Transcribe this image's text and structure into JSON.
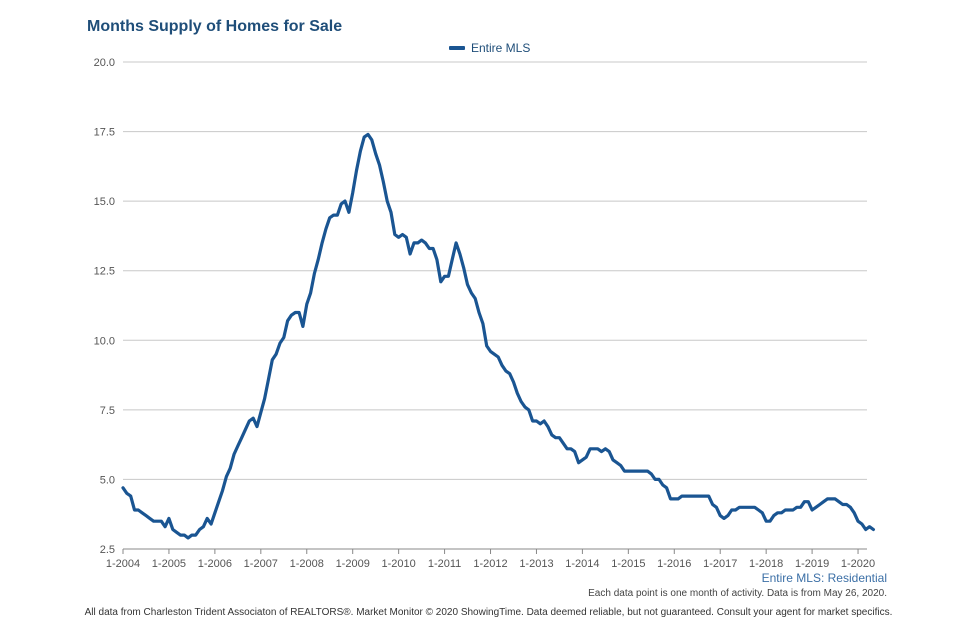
{
  "chart_data": {
    "type": "line",
    "title": "Months Supply of Homes for Sale",
    "xlabel": "",
    "ylabel": "",
    "ylim": [
      2.5,
      20.0
    ],
    "yticks": [
      "20.0",
      "17.5",
      "15.0",
      "12.5",
      "10.0",
      "7.5",
      "5.0",
      "2.5"
    ],
    "xticks": [
      "1-2004",
      "1-2005",
      "1-2006",
      "1-2007",
      "1-2008",
      "1-2009",
      "1-2010",
      "1-2011",
      "1-2012",
      "1-2013",
      "1-2014",
      "1-2015",
      "1-2016",
      "1-2017",
      "1-2018",
      "1-2019",
      "1-2020"
    ],
    "grid": true,
    "legend_position": "top-center",
    "series": [
      {
        "name": "Entire MLS",
        "color": "#1a5592",
        "points": [
          [
            "2004-01",
            4.7
          ],
          [
            "2004-02",
            4.5
          ],
          [
            "2004-03",
            4.4
          ],
          [
            "2004-04",
            3.9
          ],
          [
            "2004-05",
            3.9
          ],
          [
            "2004-06",
            3.8
          ],
          [
            "2004-07",
            3.7
          ],
          [
            "2004-08",
            3.6
          ],
          [
            "2004-09",
            3.5
          ],
          [
            "2004-10",
            3.5
          ],
          [
            "2004-11",
            3.5
          ],
          [
            "2004-12",
            3.3
          ],
          [
            "2005-01",
            3.6
          ],
          [
            "2005-02",
            3.2
          ],
          [
            "2005-03",
            3.1
          ],
          [
            "2005-04",
            3.0
          ],
          [
            "2005-05",
            3.0
          ],
          [
            "2005-06",
            2.9
          ],
          [
            "2005-07",
            3.0
          ],
          [
            "2005-08",
            3.0
          ],
          [
            "2005-09",
            3.2
          ],
          [
            "2005-10",
            3.3
          ],
          [
            "2005-11",
            3.6
          ],
          [
            "2005-12",
            3.4
          ],
          [
            "2006-01",
            3.8
          ],
          [
            "2006-02",
            4.2
          ],
          [
            "2006-03",
            4.6
          ],
          [
            "2006-04",
            5.1
          ],
          [
            "2006-05",
            5.4
          ],
          [
            "2006-06",
            5.9
          ],
          [
            "2006-07",
            6.2
          ],
          [
            "2006-08",
            6.5
          ],
          [
            "2006-09",
            6.8
          ],
          [
            "2006-10",
            7.1
          ],
          [
            "2006-11",
            7.2
          ],
          [
            "2006-12",
            6.9
          ],
          [
            "2007-01",
            7.4
          ],
          [
            "2007-02",
            7.9
          ],
          [
            "2007-03",
            8.6
          ],
          [
            "2007-04",
            9.3
          ],
          [
            "2007-05",
            9.5
          ],
          [
            "2007-06",
            9.9
          ],
          [
            "2007-07",
            10.1
          ],
          [
            "2007-08",
            10.7
          ],
          [
            "2007-09",
            10.9
          ],
          [
            "2007-10",
            11.0
          ],
          [
            "2007-11",
            11.0
          ],
          [
            "2007-12",
            10.5
          ],
          [
            "2008-01",
            11.3
          ],
          [
            "2008-02",
            11.7
          ],
          [
            "2008-03",
            12.4
          ],
          [
            "2008-04",
            12.9
          ],
          [
            "2008-05",
            13.5
          ],
          [
            "2008-06",
            14.0
          ],
          [
            "2008-07",
            14.4
          ],
          [
            "2008-08",
            14.5
          ],
          [
            "2008-09",
            14.5
          ],
          [
            "2008-10",
            14.9
          ],
          [
            "2008-11",
            15.0
          ],
          [
            "2008-12",
            14.6
          ],
          [
            "2009-01",
            15.3
          ],
          [
            "2009-02",
            16.1
          ],
          [
            "2009-03",
            16.8
          ],
          [
            "2009-04",
            17.3
          ],
          [
            "2009-05",
            17.4
          ],
          [
            "2009-06",
            17.2
          ],
          [
            "2009-07",
            16.7
          ],
          [
            "2009-08",
            16.3
          ],
          [
            "2009-09",
            15.7
          ],
          [
            "2009-10",
            15.0
          ],
          [
            "2009-11",
            14.6
          ],
          [
            "2009-12",
            13.8
          ],
          [
            "2010-01",
            13.7
          ],
          [
            "2010-02",
            13.8
          ],
          [
            "2010-03",
            13.7
          ],
          [
            "2010-04",
            13.1
          ],
          [
            "2010-05",
            13.5
          ],
          [
            "2010-06",
            13.5
          ],
          [
            "2010-07",
            13.6
          ],
          [
            "2010-08",
            13.5
          ],
          [
            "2010-09",
            13.3
          ],
          [
            "2010-10",
            13.3
          ],
          [
            "2010-11",
            12.9
          ],
          [
            "2010-12",
            12.1
          ],
          [
            "2011-01",
            12.3
          ],
          [
            "2011-02",
            12.3
          ],
          [
            "2011-03",
            12.9
          ],
          [
            "2011-04",
            13.5
          ],
          [
            "2011-05",
            13.1
          ],
          [
            "2011-06",
            12.6
          ],
          [
            "2011-07",
            12.0
          ],
          [
            "2011-08",
            11.7
          ],
          [
            "2011-09",
            11.5
          ],
          [
            "2011-10",
            11.0
          ],
          [
            "2011-11",
            10.6
          ],
          [
            "2011-12",
            9.8
          ],
          [
            "2012-01",
            9.6
          ],
          [
            "2012-02",
            9.5
          ],
          [
            "2012-03",
            9.4
          ],
          [
            "2012-04",
            9.1
          ],
          [
            "2012-05",
            8.9
          ],
          [
            "2012-06",
            8.8
          ],
          [
            "2012-07",
            8.5
          ],
          [
            "2012-08",
            8.1
          ],
          [
            "2012-09",
            7.8
          ],
          [
            "2012-10",
            7.6
          ],
          [
            "2012-11",
            7.5
          ],
          [
            "2012-12",
            7.1
          ],
          [
            "2013-01",
            7.1
          ],
          [
            "2013-02",
            7.0
          ],
          [
            "2013-03",
            7.1
          ],
          [
            "2013-04",
            6.9
          ],
          [
            "2013-05",
            6.6
          ],
          [
            "2013-06",
            6.5
          ],
          [
            "2013-07",
            6.5
          ],
          [
            "2013-08",
            6.3
          ],
          [
            "2013-09",
            6.1
          ],
          [
            "2013-10",
            6.1
          ],
          [
            "2013-11",
            6.0
          ],
          [
            "2013-12",
            5.6
          ],
          [
            "2014-01",
            5.7
          ],
          [
            "2014-02",
            5.8
          ],
          [
            "2014-03",
            6.1
          ],
          [
            "2014-04",
            6.1
          ],
          [
            "2014-05",
            6.1
          ],
          [
            "2014-06",
            6.0
          ],
          [
            "2014-07",
            6.1
          ],
          [
            "2014-08",
            6.0
          ],
          [
            "2014-09",
            5.7
          ],
          [
            "2014-10",
            5.6
          ],
          [
            "2014-11",
            5.5
          ],
          [
            "2014-12",
            5.3
          ],
          [
            "2015-01",
            5.3
          ],
          [
            "2015-02",
            5.3
          ],
          [
            "2015-03",
            5.3
          ],
          [
            "2015-04",
            5.3
          ],
          [
            "2015-05",
            5.3
          ],
          [
            "2015-06",
            5.3
          ],
          [
            "2015-07",
            5.2
          ],
          [
            "2015-08",
            5.0
          ],
          [
            "2015-09",
            5.0
          ],
          [
            "2015-10",
            4.8
          ],
          [
            "2015-11",
            4.7
          ],
          [
            "2015-12",
            4.3
          ],
          [
            "2016-01",
            4.3
          ],
          [
            "2016-02",
            4.3
          ],
          [
            "2016-03",
            4.4
          ],
          [
            "2016-04",
            4.4
          ],
          [
            "2016-05",
            4.4
          ],
          [
            "2016-06",
            4.4
          ],
          [
            "2016-07",
            4.4
          ],
          [
            "2016-08",
            4.4
          ],
          [
            "2016-09",
            4.4
          ],
          [
            "2016-10",
            4.4
          ],
          [
            "2016-11",
            4.1
          ],
          [
            "2016-12",
            4.0
          ],
          [
            "2017-01",
            3.7
          ],
          [
            "2017-02",
            3.6
          ],
          [
            "2017-03",
            3.7
          ],
          [
            "2017-04",
            3.9
          ],
          [
            "2017-05",
            3.9
          ],
          [
            "2017-06",
            4.0
          ],
          [
            "2017-07",
            4.0
          ],
          [
            "2017-08",
            4.0
          ],
          [
            "2017-09",
            4.0
          ],
          [
            "2017-10",
            4.0
          ],
          [
            "2017-11",
            3.9
          ],
          [
            "2017-12",
            3.8
          ],
          [
            "2018-01",
            3.5
          ],
          [
            "2018-02",
            3.5
          ],
          [
            "2018-03",
            3.7
          ],
          [
            "2018-04",
            3.8
          ],
          [
            "2018-05",
            3.8
          ],
          [
            "2018-06",
            3.9
          ],
          [
            "2018-07",
            3.9
          ],
          [
            "2018-08",
            3.9
          ],
          [
            "2018-09",
            4.0
          ],
          [
            "2018-10",
            4.0
          ],
          [
            "2018-11",
            4.2
          ],
          [
            "2018-12",
            4.2
          ],
          [
            "2019-01",
            3.9
          ],
          [
            "2019-02",
            4.0
          ],
          [
            "2019-03",
            4.1
          ],
          [
            "2019-04",
            4.2
          ],
          [
            "2019-05",
            4.3
          ],
          [
            "2019-06",
            4.3
          ],
          [
            "2019-07",
            4.3
          ],
          [
            "2019-08",
            4.2
          ],
          [
            "2019-09",
            4.1
          ],
          [
            "2019-10",
            4.1
          ],
          [
            "2019-11",
            4.0
          ],
          [
            "2019-12",
            3.8
          ],
          [
            "2020-01",
            3.5
          ],
          [
            "2020-02",
            3.4
          ],
          [
            "2020-03",
            3.2
          ],
          [
            "2020-04",
            3.3
          ],
          [
            "2020-05",
            3.2
          ]
        ]
      }
    ]
  },
  "series_caption": "Entire MLS: Residential",
  "note": "Each data point is one month of activity. Data is from May 26, 2020.",
  "footer": "All data from Charleston Trident Associaton of REALTORS®. Market Monitor © 2020 ShowingTime. Data deemed reliable, but not guaranteed. Consult your agent for market specifics."
}
